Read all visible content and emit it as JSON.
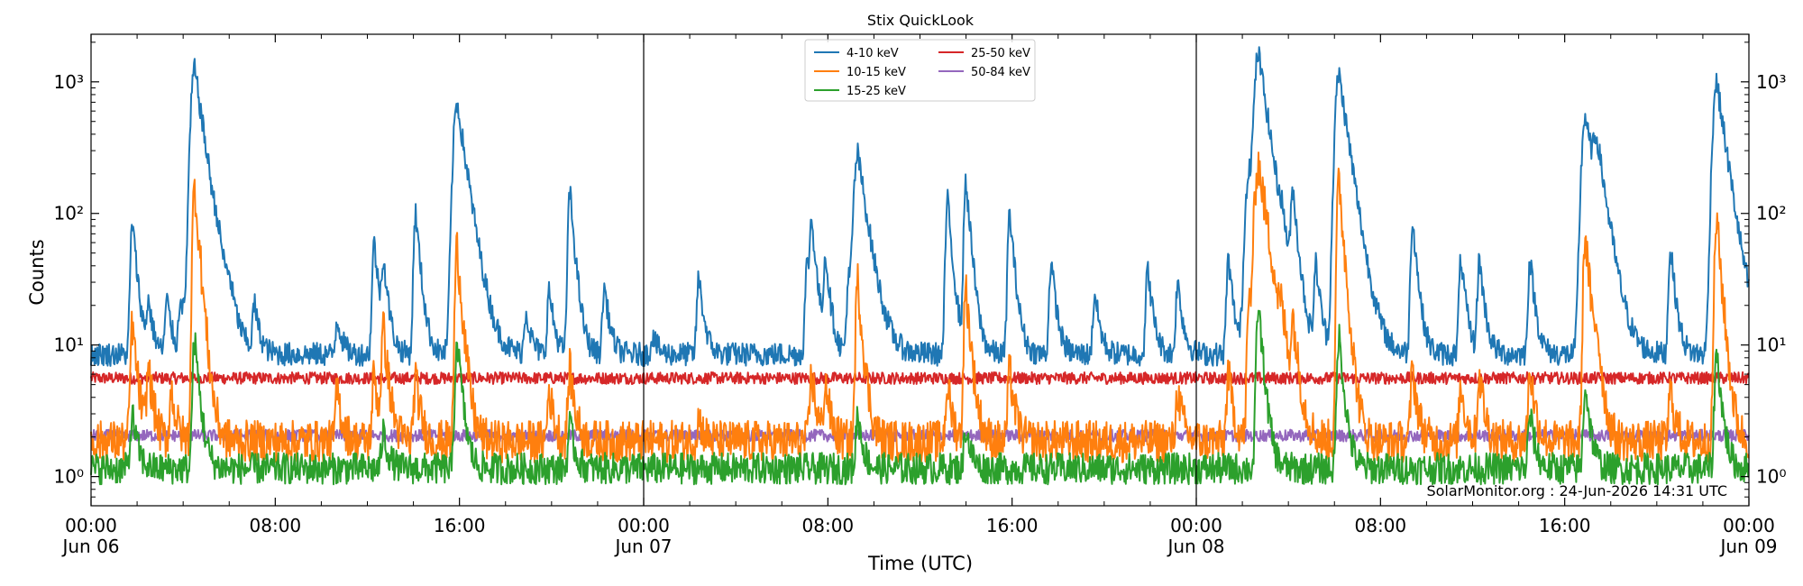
{
  "chart_data": {
    "type": "line",
    "title": "Stix QuickLook",
    "xlabel": "Time (UTC)",
    "ylabel": "Counts",
    "yscale": "log",
    "ylim": [
      0.6,
      2300
    ],
    "xlim_hours": [
      0,
      72
    ],
    "grid": false,
    "legend_placement": "top-center",
    "annotation": "SolarMonitor.org : 24-Jun-2026 14:31 UTC",
    "x_ticks": [
      {
        "hours": 0,
        "line1": "00:00",
        "line2": "Jun 06"
      },
      {
        "hours": 8,
        "line1": "08:00",
        "line2": ""
      },
      {
        "hours": 16,
        "line1": "16:00",
        "line2": ""
      },
      {
        "hours": 24,
        "line1": "00:00",
        "line2": "Jun 07"
      },
      {
        "hours": 32,
        "line1": "08:00",
        "line2": ""
      },
      {
        "hours": 40,
        "line1": "16:00",
        "line2": ""
      },
      {
        "hours": 48,
        "line1": "00:00",
        "line2": "Jun 08"
      },
      {
        "hours": 56,
        "line1": "08:00",
        "line2": ""
      },
      {
        "hours": 64,
        "line1": "16:00",
        "line2": ""
      },
      {
        "hours": 72,
        "line1": "00:00",
        "line2": "Jun 09"
      }
    ],
    "y_ticks": [
      {
        "value": 1,
        "label": "10⁰"
      },
      {
        "value": 10,
        "label": "10¹"
      },
      {
        "value": 100,
        "label": "10²"
      },
      {
        "value": 1000,
        "label": "10³"
      }
    ],
    "day_separators_hours": [
      24,
      48
    ],
    "series": [
      {
        "name": "4-10 keV",
        "color": "#1f77b4",
        "baseline": 8.5,
        "peaks": [
          {
            "t": 1.8,
            "v": 85
          },
          {
            "t": 2.5,
            "v": 20
          },
          {
            "t": 3.3,
            "v": 22
          },
          {
            "t": 3.9,
            "v": 24
          },
          {
            "t": 4.5,
            "v": 1250
          },
          {
            "t": 5.5,
            "v": 18
          },
          {
            "t": 6.0,
            "v": 18
          },
          {
            "t": 7.1,
            "v": 20
          },
          {
            "t": 10.7,
            "v": 16
          },
          {
            "t": 12.3,
            "v": 60
          },
          {
            "t": 12.7,
            "v": 40
          },
          {
            "t": 14.1,
            "v": 100
          },
          {
            "t": 15.9,
            "v": 700
          },
          {
            "t": 18.9,
            "v": 18
          },
          {
            "t": 19.9,
            "v": 26
          },
          {
            "t": 20.8,
            "v": 145
          },
          {
            "t": 22.3,
            "v": 28
          },
          {
            "t": 24.4,
            "v": 12
          },
          {
            "t": 26.4,
            "v": 33
          },
          {
            "t": 31.1,
            "v": 40
          },
          {
            "t": 31.3,
            "v": 80
          },
          {
            "t": 31.9,
            "v": 45
          },
          {
            "t": 32.9,
            "v": 30
          },
          {
            "t": 33.3,
            "v": 280
          },
          {
            "t": 37.2,
            "v": 125
          },
          {
            "t": 38.0,
            "v": 175
          },
          {
            "t": 39.9,
            "v": 100
          },
          {
            "t": 41.7,
            "v": 43
          },
          {
            "t": 43.6,
            "v": 25
          },
          {
            "t": 45.9,
            "v": 38
          },
          {
            "t": 47.2,
            "v": 30
          },
          {
            "t": 49.4,
            "v": 45
          },
          {
            "t": 50.3,
            "v": 220
          },
          {
            "t": 50.7,
            "v": 1600
          },
          {
            "t": 51.7,
            "v": 35
          },
          {
            "t": 52.2,
            "v": 130
          },
          {
            "t": 53.2,
            "v": 40
          },
          {
            "t": 54.2,
            "v": 1150
          },
          {
            "t": 57.4,
            "v": 90
          },
          {
            "t": 59.5,
            "v": 45
          },
          {
            "t": 60.3,
            "v": 45
          },
          {
            "t": 62.5,
            "v": 45
          },
          {
            "t": 64.9,
            "v": 550
          },
          {
            "t": 65.4,
            "v": 250
          },
          {
            "t": 68.6,
            "v": 55
          },
          {
            "t": 70.6,
            "v": 1000
          }
        ]
      },
      {
        "name": "10-15 keV",
        "color": "#ff7f0e",
        "baseline": 1.85,
        "peaks": [
          {
            "t": 1.8,
            "v": 14
          },
          {
            "t": 2.5,
            "v": 6.5
          },
          {
            "t": 3.5,
            "v": 4.5
          },
          {
            "t": 4.5,
            "v": 160
          },
          {
            "t": 10.7,
            "v": 4.5
          },
          {
            "t": 12.3,
            "v": 6
          },
          {
            "t": 12.7,
            "v": 13
          },
          {
            "t": 14.1,
            "v": 5.5
          },
          {
            "t": 15.9,
            "v": 55
          },
          {
            "t": 19.9,
            "v": 4.5
          },
          {
            "t": 20.8,
            "v": 6.5
          },
          {
            "t": 26.4,
            "v": 2.8
          },
          {
            "t": 31.3,
            "v": 6
          },
          {
            "t": 31.9,
            "v": 5
          },
          {
            "t": 33.3,
            "v": 30
          },
          {
            "t": 37.2,
            "v": 5
          },
          {
            "t": 38.0,
            "v": 27
          },
          {
            "t": 39.9,
            "v": 6.5
          },
          {
            "t": 47.2,
            "v": 4.5
          },
          {
            "t": 49.4,
            "v": 6
          },
          {
            "t": 50.3,
            "v": 20
          },
          {
            "t": 50.7,
            "v": 240
          },
          {
            "t": 51.7,
            "v": 7
          },
          {
            "t": 52.2,
            "v": 13
          },
          {
            "t": 54.2,
            "v": 175
          },
          {
            "t": 57.4,
            "v": 6.5
          },
          {
            "t": 59.5,
            "v": 5
          },
          {
            "t": 60.3,
            "v": 6
          },
          {
            "t": 62.5,
            "v": 6.5
          },
          {
            "t": 64.9,
            "v": 70
          },
          {
            "t": 65.4,
            "v": 10
          },
          {
            "t": 68.6,
            "v": 4.5
          },
          {
            "t": 70.6,
            "v": 90
          }
        ]
      },
      {
        "name": "15-25 keV",
        "color": "#2ca02c",
        "baseline": 1.15,
        "peaks": [
          {
            "t": 1.8,
            "v": 3
          },
          {
            "t": 4.5,
            "v": 11
          },
          {
            "t": 12.7,
            "v": 2.2
          },
          {
            "t": 15.9,
            "v": 11
          },
          {
            "t": 20.8,
            "v": 2.5
          },
          {
            "t": 33.3,
            "v": 3
          },
          {
            "t": 38.0,
            "v": 2.4
          },
          {
            "t": 50.7,
            "v": 20
          },
          {
            "t": 54.2,
            "v": 12
          },
          {
            "t": 62.5,
            "v": 3
          },
          {
            "t": 64.9,
            "v": 5
          },
          {
            "t": 70.6,
            "v": 9
          }
        ]
      },
      {
        "name": "25-50 keV",
        "color": "#d62728",
        "baseline": 5.6,
        "peaks": []
      },
      {
        "name": "50-84 keV",
        "color": "#9467bd",
        "baseline": 2.05,
        "peaks": []
      }
    ]
  }
}
